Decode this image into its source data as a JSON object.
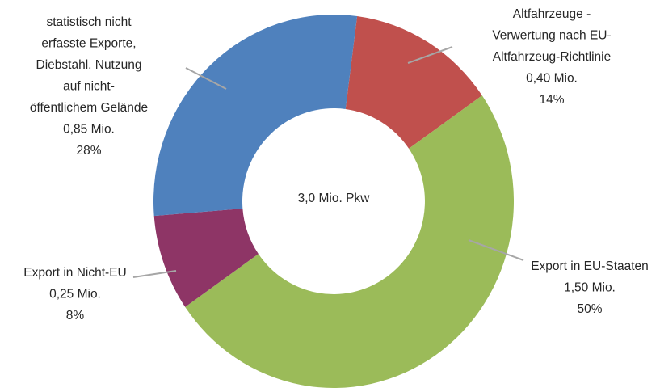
{
  "chart_data": {
    "type": "donut",
    "center_label": "3,0 Mio. Pkw",
    "categories": [
      [
        "Altfahrzeuge -",
        "Verwertung nach EU-",
        "Altfahrzeug-Richtlinie"
      ],
      [
        "Export in EU-Staaten"
      ],
      [
        "Export in Nicht-EU"
      ],
      [
        "statistisch nicht",
        "erfasste Exporte,",
        "Diebstahl, Nutzung",
        "auf nicht-",
        "öffentlichem Gelände"
      ]
    ],
    "values": [
      0.4,
      1.5,
      0.25,
      0.85
    ],
    "value_labels": [
      "0,40 Mio.",
      "1,50 Mio.",
      "0,25 Mio.",
      "0,85 Mio."
    ],
    "percents": [
      14,
      50,
      8,
      28
    ],
    "percent_labels": [
      "14%",
      "50%",
      "8%",
      "28%"
    ],
    "colors": [
      "#c0504d",
      "#9bbb59",
      "#8e3566",
      "#4f81bd"
    ]
  }
}
